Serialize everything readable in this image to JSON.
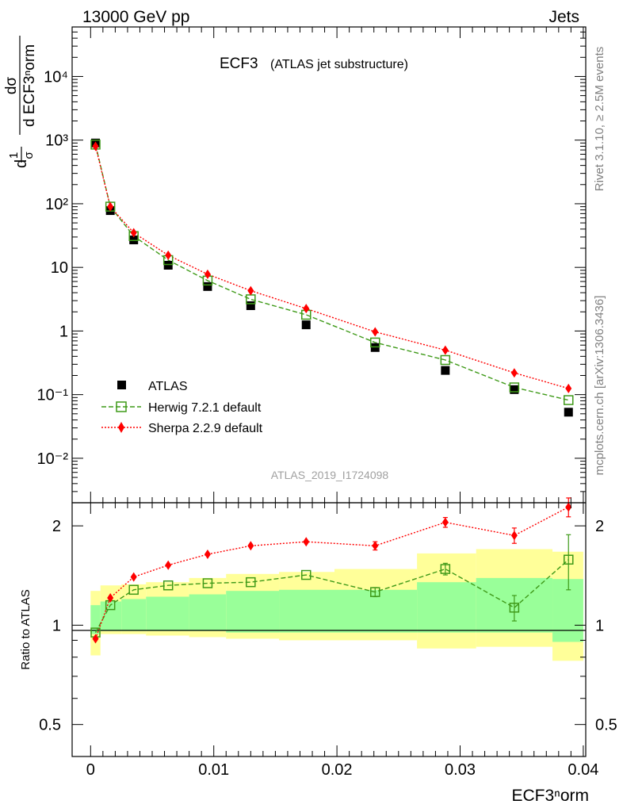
{
  "header": {
    "left": "13000 GeV pp",
    "right": "Jets"
  },
  "title": {
    "main": "ECF3",
    "sub": "(ATLAS jet substructure)"
  },
  "analysis_id": "ATLAS_2019_I1724098",
  "side_labels": {
    "rivet": "Rivet 3.1.10, ≥ 2.5M events",
    "mcplots": "mcplots.cern.ch [arXiv:1306.3436]"
  },
  "axes": {
    "xlabel": "ECF3ⁿorm",
    "ratio_ylabel": "Ratio to ATLAS",
    "ylabel_top_num": "dσ",
    "ylabel_top_den": "d ECF3ⁿorm",
    "ylabel_left_num": "1",
    "ylabel_left_den": "σ",
    "ylabel_d": "d"
  },
  "legend": {
    "atlas": "ATLAS",
    "herwig": "Herwig 7.2.1 default",
    "sherpa": "Sherpa 2.2.9 default"
  },
  "colors": {
    "data": "#000000",
    "herwig": "#3f9a19",
    "sherpa": "#ff0000",
    "band_outer": "#ffff99",
    "band_inner": "#99ff99"
  },
  "chart_data": [
    {
      "type": "scatter",
      "scale": "log",
      "x_range": [
        -0.0015,
        0.0402
      ],
      "y_range": [
        0.002,
        60000
      ],
      "y_tick_labels": [
        "10⁻²",
        "10⁻¹",
        "1",
        "10",
        "10²",
        "10³",
        "10⁴"
      ],
      "y_ticks": [
        0.01,
        0.1,
        1,
        10,
        100,
        1000,
        10000
      ],
      "bins": [
        {
          "lo": 0.0,
          "hi": 0.0008
        },
        {
          "lo": 0.0008,
          "hi": 0.0025
        },
        {
          "lo": 0.0025,
          "hi": 0.0045
        },
        {
          "lo": 0.0045,
          "hi": 0.008
        },
        {
          "lo": 0.008,
          "hi": 0.011
        },
        {
          "lo": 0.011,
          "hi": 0.0153
        },
        {
          "lo": 0.0153,
          "hi": 0.0198
        },
        {
          "lo": 0.0198,
          "hi": 0.0265
        },
        {
          "lo": 0.0265,
          "hi": 0.0313
        },
        {
          "lo": 0.0313,
          "hi": 0.0375
        },
        {
          "lo": 0.0375,
          "hi": 0.04
        }
      ],
      "series": [
        {
          "name": "ATLAS",
          "x": [
            0.0004,
            0.0016,
            0.0035,
            0.0063,
            0.0095,
            0.013,
            0.0175,
            0.0231,
            0.0288,
            0.0344,
            0.0388
          ],
          "y": [
            900,
            78,
            27,
            10.8,
            5.0,
            2.5,
            1.25,
            0.55,
            0.24,
            0.12,
            0.053
          ]
        },
        {
          "name": "Herwig 7.2.1 default",
          "x": [
            0.0004,
            0.0016,
            0.0035,
            0.0063,
            0.0095,
            0.013,
            0.0175,
            0.0231,
            0.0288,
            0.0344,
            0.0388
          ],
          "y": [
            850,
            90,
            31,
            13,
            6.2,
            3.15,
            1.8,
            0.66,
            0.35,
            0.13,
            0.082
          ]
        },
        {
          "name": "Sherpa 2.2.9 default",
          "x": [
            0.0004,
            0.0016,
            0.0035,
            0.0063,
            0.0095,
            0.013,
            0.0175,
            0.0231,
            0.0288,
            0.0344,
            0.0388
          ],
          "y": [
            800,
            90,
            35,
            15.5,
            7.8,
            4.3,
            2.25,
            0.97,
            0.5,
            0.22,
            0.125
          ]
        }
      ]
    },
    {
      "type": "scatter",
      "scale": "log",
      "ylabel": "Ratio to ATLAS",
      "x_range": [
        -0.0015,
        0.0402
      ],
      "y_range": [
        0.4,
        2.35
      ],
      "x_ticks": [
        0,
        0.01,
        0.02,
        0.03,
        0.04
      ],
      "x_tick_labels": [
        "0",
        "0.01",
        "0.02",
        "0.03",
        "0.04"
      ],
      "y_ticks": [
        0.5,
        1,
        2
      ],
      "y_tick_labels": [
        "0.5",
        "1",
        "2"
      ],
      "band_inner": {
        "lo": [
          0.94,
          0.96,
          0.96,
          0.96,
          0.96,
          0.95,
          0.95,
          0.95,
          0.95,
          0.95,
          0.89
        ],
        "hi": [
          1.15,
          1.18,
          1.2,
          1.22,
          1.24,
          1.27,
          1.28,
          1.28,
          1.35,
          1.39,
          1.38
        ]
      },
      "band_outer": {
        "lo": [
          0.81,
          0.94,
          0.94,
          0.93,
          0.92,
          0.91,
          0.9,
          0.9,
          0.85,
          0.86,
          0.78
        ],
        "hi": [
          1.27,
          1.32,
          1.33,
          1.35,
          1.39,
          1.43,
          1.45,
          1.48,
          1.65,
          1.7,
          1.67
        ]
      },
      "series": [
        {
          "name": "Herwig 7.2.1 default",
          "x": [
            0.0004,
            0.0016,
            0.0035,
            0.0063,
            0.0095,
            0.013,
            0.0175,
            0.0231,
            0.0288,
            0.0344,
            0.0388
          ],
          "y": [
            0.95,
            1.15,
            1.28,
            1.32,
            1.34,
            1.35,
            1.42,
            1.26,
            1.48,
            1.13,
            1.58
          ],
          "err_lo": [
            0,
            0,
            0,
            0,
            0,
            0,
            0,
            0.04,
            0.06,
            0.1,
            0.3
          ],
          "err_hi": [
            0,
            0,
            0,
            0,
            0,
            0,
            0,
            0.04,
            0.06,
            0.1,
            0.3
          ]
        },
        {
          "name": "Sherpa 2.2.9 default",
          "x": [
            0.0004,
            0.0016,
            0.0035,
            0.0063,
            0.0095,
            0.013,
            0.0175,
            0.0231,
            0.0288,
            0.0344,
            0.0388
          ],
          "y": [
            0.91,
            1.21,
            1.4,
            1.52,
            1.64,
            1.74,
            1.79,
            1.74,
            2.05,
            1.87,
            2.28
          ],
          "err_lo": [
            0,
            0,
            0,
            0,
            0,
            0,
            0,
            0.05,
            0.07,
            0.1,
            0.15
          ],
          "err_hi": [
            0,
            0,
            0,
            0,
            0,
            0,
            0,
            0.05,
            0.07,
            0.1,
            0.15
          ]
        }
      ]
    }
  ]
}
